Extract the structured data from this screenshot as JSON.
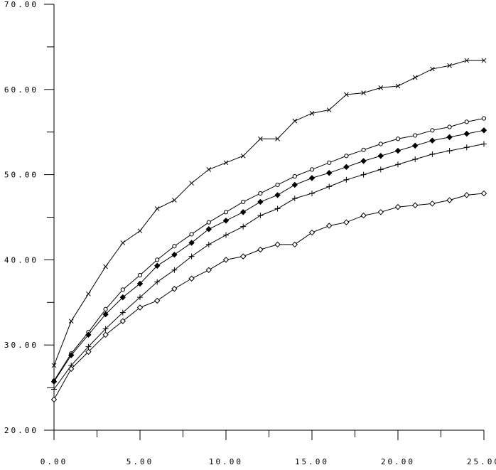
{
  "chart_data": {
    "type": "line",
    "title": "",
    "xlabel": "",
    "ylabel": "",
    "xlim": [
      0,
      25
    ],
    "ylim": [
      20,
      70
    ],
    "x_ticks": [
      {
        "value": 0,
        "label": "0.00"
      },
      {
        "value": 5,
        "label": "5.00"
      },
      {
        "value": 10,
        "label": "10.00"
      },
      {
        "value": 15,
        "label": "15.00"
      },
      {
        "value": 20,
        "label": "20.00"
      },
      {
        "value": 25,
        "label": "25.00"
      }
    ],
    "y_ticks": [
      {
        "value": 20,
        "label": "20.00"
      },
      {
        "value": 30,
        "label": "30.00"
      },
      {
        "value": 40,
        "label": "40.00"
      },
      {
        "value": 50,
        "label": "50.00"
      },
      {
        "value": 60,
        "label": "60.00"
      },
      {
        "value": 70,
        "label": "70.00"
      }
    ],
    "grid": false,
    "legend": "none",
    "x": [
      0,
      1,
      2,
      3,
      4,
      5,
      6,
      7,
      8,
      9,
      10,
      11,
      12,
      13,
      14,
      15,
      16,
      17,
      18,
      19,
      20,
      21,
      22,
      23,
      24,
      25
    ],
    "series": [
      {
        "marker": "x",
        "values": [
          27.6,
          32.8,
          36.0,
          39.2,
          42.0,
          43.4,
          46.0,
          47.0,
          49.0,
          50.6,
          51.4,
          52.2,
          54.2,
          54.2,
          56.3,
          57.2,
          57.6,
          59.4,
          59.6,
          60.2,
          60.4,
          61.4,
          62.4,
          62.8,
          63.4,
          63.4
        ]
      },
      {
        "marker": "circle",
        "values": [
          25.8,
          29.0,
          31.5,
          34.2,
          36.5,
          38.2,
          40.0,
          41.6,
          43.0,
          44.4,
          45.6,
          46.8,
          47.8,
          48.8,
          49.8,
          50.6,
          51.4,
          52.2,
          52.9,
          53.6,
          54.2,
          54.6,
          55.2,
          55.6,
          56.2,
          56.6
        ]
      },
      {
        "marker": "filled-diamond",
        "values": [
          25.7,
          28.8,
          31.2,
          33.6,
          35.6,
          37.2,
          39.3,
          40.6,
          42.0,
          43.6,
          44.6,
          45.6,
          46.8,
          47.6,
          48.8,
          49.6,
          50.2,
          50.9,
          51.6,
          52.2,
          52.8,
          53.4,
          54.0,
          54.4,
          54.8,
          55.2
        ]
      },
      {
        "marker": "plus",
        "values": [
          24.8,
          27.6,
          29.8,
          31.9,
          33.8,
          35.6,
          37.4,
          38.8,
          40.4,
          41.8,
          42.9,
          43.9,
          45.2,
          46.0,
          47.2,
          47.8,
          48.6,
          49.4,
          50.0,
          50.6,
          51.2,
          51.8,
          52.4,
          52.8,
          53.2,
          53.6
        ]
      },
      {
        "marker": "diamond",
        "values": [
          23.6,
          27.2,
          29.2,
          31.2,
          32.8,
          34.4,
          35.2,
          36.6,
          37.8,
          38.8,
          40.0,
          40.4,
          41.2,
          41.8,
          41.8,
          43.2,
          44.0,
          44.4,
          45.2,
          45.6,
          46.2,
          46.4,
          46.6,
          47.0,
          47.6,
          47.8
        ]
      }
    ]
  }
}
